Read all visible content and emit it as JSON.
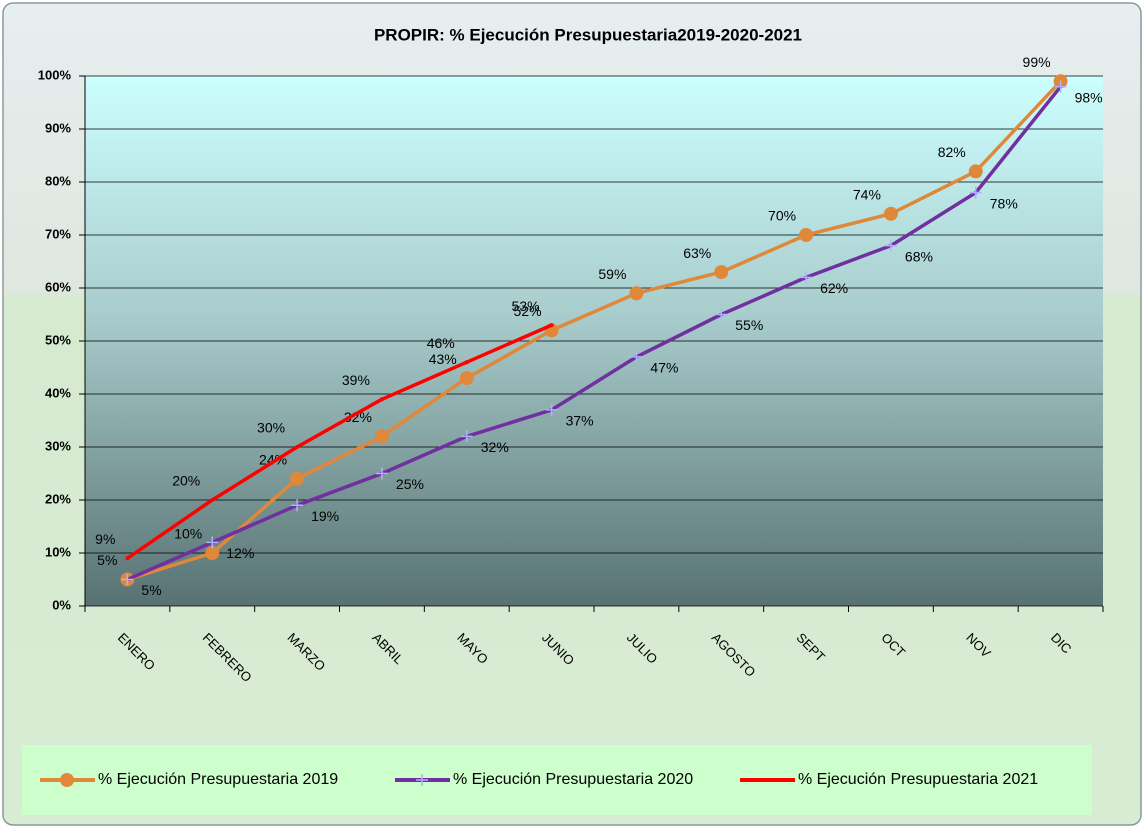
{
  "chart_data": {
    "type": "line",
    "title": "PROPIR: % Ejecución Presupuestaria2019-2020-2021",
    "categories": [
      "ENERO",
      "FEBRERO",
      "MARZO",
      "ABRIL",
      "MAYO",
      "JUNIO",
      "JULIO",
      "AGOSTO",
      "SEPT",
      "OCT",
      "NOV",
      "DIC"
    ],
    "series": [
      {
        "name": "% Ejecución Presupuestaria 2019",
        "color": "#e0883a",
        "marker": "circle",
        "values": [
          5,
          10,
          24,
          32,
          43,
          52,
          59,
          63,
          70,
          74,
          82,
          99
        ],
        "value_labels": [
          "5%",
          "10%",
          "24%",
          "32%",
          "43%",
          "52%",
          "59%",
          "63%",
          "70%",
          "74%",
          "82%",
          "99%"
        ]
      },
      {
        "name": "% Ejecución Presupuestaria 2020",
        "color": "#7030a0",
        "marker": "plus",
        "values": [
          5,
          12,
          19,
          25,
          32,
          37,
          47,
          55,
          62,
          68,
          78,
          98
        ],
        "value_labels": [
          "5%",
          "12%",
          "19%",
          "25%",
          "32%",
          "37%",
          "47%",
          "55%",
          "62%",
          "68%",
          "78%",
          "98%"
        ]
      },
      {
        "name": "% Ejecución Presupuestaria 2021",
        "color": "#ff0000",
        "marker": "none",
        "values": [
          9,
          20,
          30,
          39,
          46,
          53,
          null,
          null,
          null,
          null,
          null,
          null
        ],
        "value_labels": [
          "9%",
          "20%",
          "30%",
          "39%",
          "46%",
          "53%",
          null,
          null,
          null,
          null,
          null,
          null
        ]
      }
    ],
    "ylim": [
      0,
      100
    ],
    "yticks": [
      {
        "value": 0,
        "label": "0%"
      },
      {
        "value": 10,
        "label": "10%"
      },
      {
        "value": 20,
        "label": "20%"
      },
      {
        "value": 30,
        "label": "30%"
      },
      {
        "value": 40,
        "label": "40%"
      },
      {
        "value": 50,
        "label": "50%"
      },
      {
        "value": 60,
        "label": "60%"
      },
      {
        "value": 70,
        "label": "70%"
      },
      {
        "value": 80,
        "label": "80%"
      },
      {
        "value": 90,
        "label": "90%"
      },
      {
        "value": 100,
        "label": "100%"
      }
    ],
    "grid": true,
    "legend": "bottom"
  }
}
